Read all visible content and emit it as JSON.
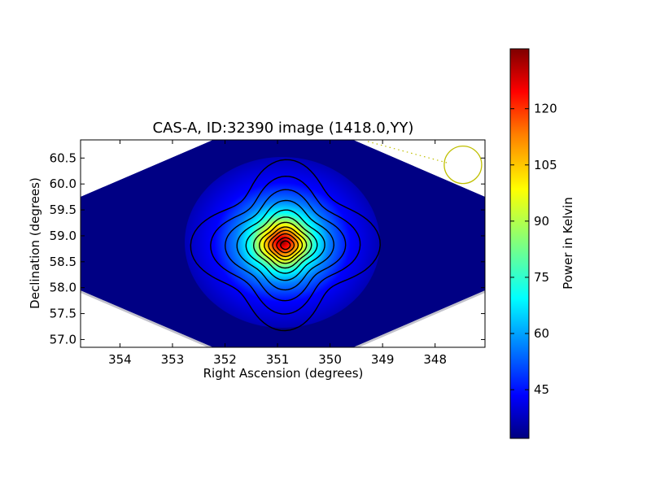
{
  "chart_data": {
    "type": "heatmap",
    "title": "CAS-A, ID:32390 image (1418.0,YY)",
    "xlabel": "Right Ascension (degrees)",
    "ylabel": "Declination (degrees)",
    "xlim": [
      354.75,
      347.05
    ],
    "ylim": [
      56.85,
      60.85
    ],
    "x_ticks": [
      "354",
      "353",
      "352",
      "351",
      "350",
      "349",
      "348"
    ],
    "x_tick_values": [
      354,
      353,
      352,
      351,
      350,
      349,
      348
    ],
    "y_ticks": [
      "57.0",
      "57.5",
      "58.0",
      "58.5",
      "59.0",
      "59.5",
      "60.0",
      "60.5"
    ],
    "y_tick_values": [
      57.0,
      57.5,
      58.0,
      58.5,
      59.0,
      59.5,
      60.0,
      60.5
    ],
    "peak": {
      "ra": 350.85,
      "dec": 58.82
    },
    "contour_radii": [
      [
        1.5,
        1.45
      ],
      [
        1.2,
        1.18
      ],
      [
        0.98,
        0.96
      ],
      [
        0.8,
        0.78
      ],
      [
        0.66,
        0.62
      ],
      [
        0.54,
        0.5
      ],
      [
        0.45,
        0.41
      ],
      [
        0.37,
        0.33
      ],
      [
        0.3,
        0.27
      ],
      [
        0.23,
        0.21
      ],
      [
        0.16,
        0.14
      ],
      [
        0.09,
        0.08
      ]
    ],
    "colorbar": {
      "label": "Power in Kelvin",
      "min": 32,
      "max": 136,
      "ticks": [
        "45",
        "60",
        "75",
        "90",
        "105",
        "120"
      ],
      "tick_values": [
        45,
        60,
        75,
        90,
        105,
        120
      ],
      "colormap": [
        "#00007f",
        "#0000ff",
        "#007fff",
        "#00ffff",
        "#7fff7f",
        "#ffff00",
        "#ff7f00",
        "#ff0000",
        "#7f0000"
      ]
    },
    "beam_circle": {
      "ra": 347.47,
      "dec": 60.37,
      "color": "#bfbf00"
    },
    "grid": false,
    "legend": "none"
  }
}
